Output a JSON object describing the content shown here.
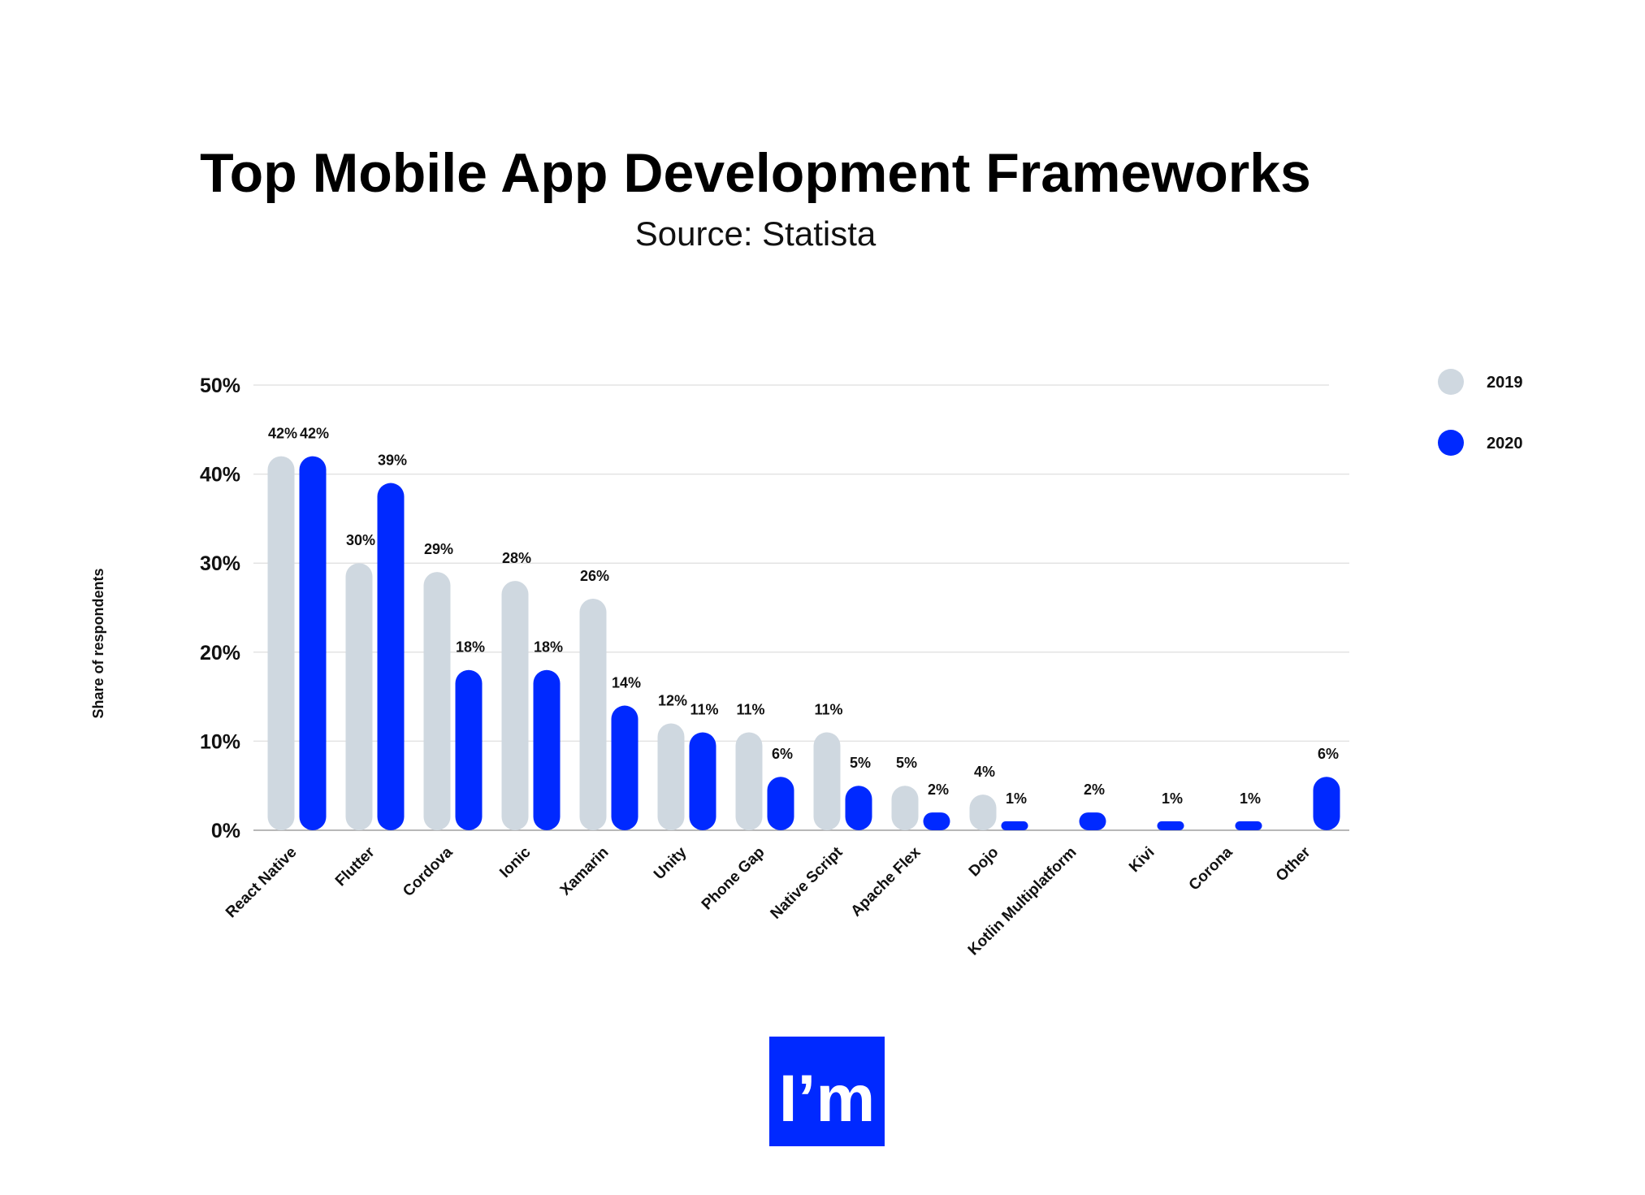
{
  "chart_data": {
    "type": "bar",
    "title": "Top Mobile App Development Frameworks",
    "subtitle": "Source: Statista",
    "ylabel": "Share of respondents",
    "xlabel": "",
    "ylim": [
      0,
      50
    ],
    "yticks": [
      "0%",
      "10%",
      "20%",
      "30%",
      "40%",
      "50%"
    ],
    "grid": true,
    "legend_position": "top-right",
    "categories": [
      "React Native",
      "Flutter",
      "Cordova",
      "Ionic",
      "Xamarin",
      "Unity",
      "Phone Gap",
      "Native Script",
      "Apache Flex",
      "Dojo",
      "Kotlin Multiplatform",
      "Kivi",
      "Corona",
      "Other"
    ],
    "series": [
      {
        "name": "2019",
        "color": "#CFD8E0",
        "values": [
          42,
          30,
          29,
          28,
          26,
          12,
          11,
          11,
          5,
          4,
          null,
          null,
          null,
          null
        ]
      },
      {
        "name": "2020",
        "color": "#0029FF",
        "values": [
          42,
          39,
          18,
          18,
          14,
          11,
          6,
          5,
          2,
          1,
          2,
          1,
          1,
          6
        ]
      }
    ]
  },
  "logo": {
    "text": "I’m",
    "color": "#0029FF"
  }
}
